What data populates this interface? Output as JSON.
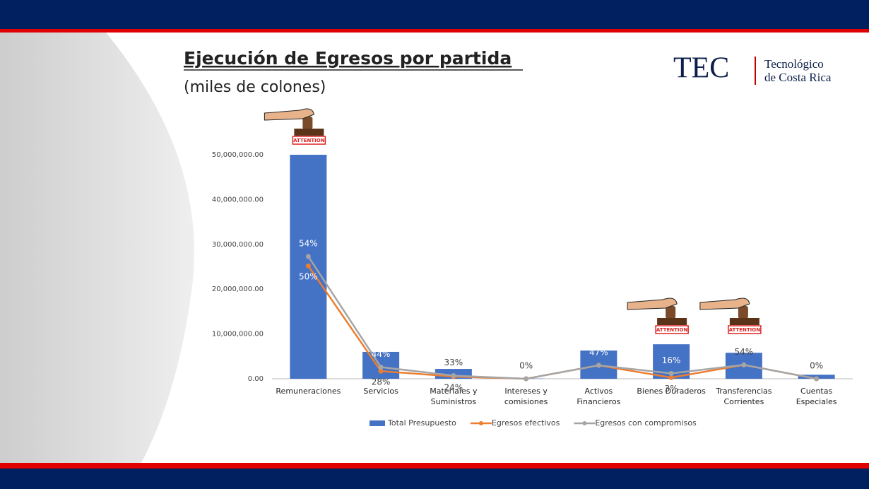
{
  "header": {
    "logo_mark": "TEC",
    "logo_line1": "Tecnológico",
    "logo_line2": "de Costa Rica"
  },
  "stamp_text": "ATTENTION",
  "chart_data": {
    "type": "bar",
    "title": "Ejecución de Egresos por partida",
    "subtitle": "(miles de colones)",
    "categories": [
      "Remuneraciones",
      "Servicios",
      "Materiales y\nSuministros",
      "Intereses y\ncomisiones",
      "Activos\nFinancieros",
      "Bienes Duraderos",
      "Transferencias\nCorrientes",
      "Cuentas\nEspeciales"
    ],
    "ylim": [
      0,
      50000000
    ],
    "yticks": [
      {
        "value": 0,
        "label": "0.00"
      },
      {
        "value": 10000000,
        "label": "10,000,000.00"
      },
      {
        "value": 20000000,
        "label": "20,000,000.00"
      },
      {
        "value": 30000000,
        "label": "30,000,000.00"
      },
      {
        "value": 40000000,
        "label": "40,000,000.00"
      },
      {
        "value": 50000000,
        "label": "50,000,000.00"
      }
    ],
    "grid": false,
    "legend": "bottom",
    "series": [
      {
        "name": "Total Presupuesto",
        "type": "bar",
        "color": "#4472c4",
        "values": [
          50000000,
          6000000,
          2200000,
          50000,
          6300000,
          7700000,
          5800000,
          900000
        ]
      },
      {
        "name": "Egresos efectivos",
        "type": "line",
        "color": "#ed7d31",
        "values": [
          25200000,
          1700000,
          500000,
          0,
          3000000,
          250000,
          3100000,
          0
        ],
        "data_labels": [
          "50%",
          "28%",
          "24%",
          null,
          null,
          "3%",
          null,
          null
        ]
      },
      {
        "name": "Egresos con compromisos",
        "type": "line",
        "color": "#a5a5a5",
        "values": [
          27300000,
          2600000,
          700000,
          0,
          3000000,
          1200000,
          3100000,
          0
        ],
        "data_labels": [
          "54%",
          "44%",
          "33%",
          "0%",
          "47%",
          "16%",
          "54%",
          "0%"
        ]
      }
    ]
  }
}
